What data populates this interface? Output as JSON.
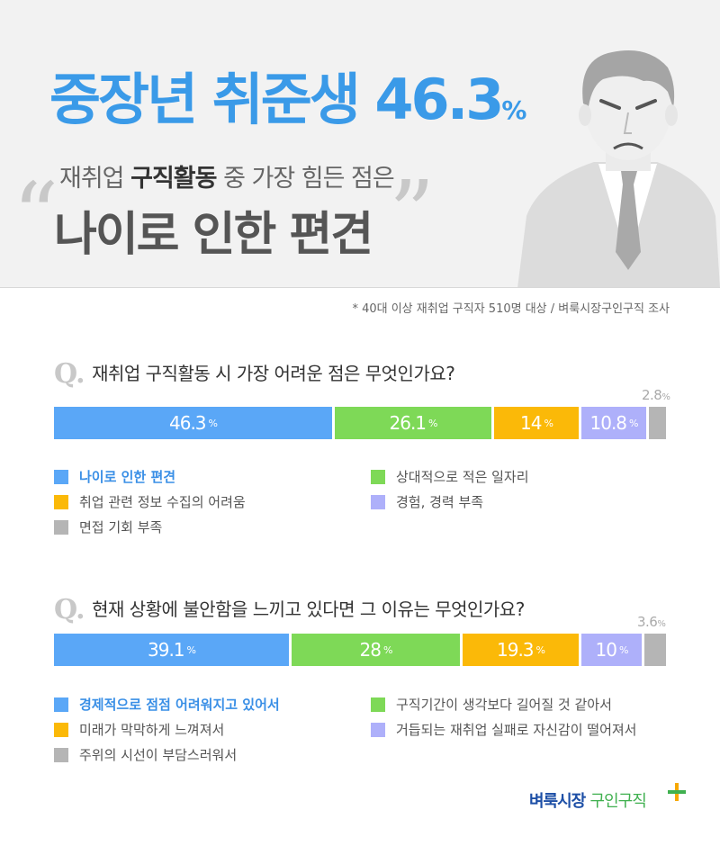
{
  "header": {
    "headline": "중장년 취준생 46.3",
    "headline_unit": "%",
    "subtitle_pre": "재취업 ",
    "subtitle_bold": "구직활동",
    "subtitle_post": " 중 가장 힘든 점은",
    "quote_open": "“",
    "quote_close": "”",
    "main_quote": "나이로 인한 편견"
  },
  "source": "* 40대 이상 재취업 구직자 510명 대상 / 벼룩시장구인구직 조사",
  "q_mark": "Q.",
  "colors": {
    "blue": "#5aa7f7",
    "green": "#7ed957",
    "orange": "#fbb908",
    "purple": "#aeb0fa",
    "gray": "#b5b5b5",
    "title_blue": "#3a9ae8"
  },
  "chart_data": [
    {
      "type": "bar",
      "title": "재취업 구직활동 시 가장 어려운 점은 무엇인가요?",
      "unit": "%",
      "categories": [
        "나이로 인한 편견",
        "상대적으로 적은 일자리",
        "취업 관련 정보 수집의 어려움",
        "경험, 경력 부족",
        "면접 기회 부족"
      ],
      "values": [
        46.3,
        26.1,
        14,
        10.8,
        2.8
      ],
      "labels": [
        "46.3",
        "26.1",
        "14",
        "10.8",
        "2.8"
      ]
    },
    {
      "type": "bar",
      "title": "현재 상황에 불안함을 느끼고 있다면 그 이유는 무엇인가요?",
      "unit": "%",
      "categories": [
        "경제적으로 점점 어려워지고 있어서",
        "구직기간이 생각보다 길어질 것 같아서",
        "미래가 막막하게 느껴져서",
        "거듭되는 재취업 실패로 자신감이 떨어져서",
        "주위의 시선이 부담스러워서"
      ],
      "values": [
        39.1,
        28,
        19.3,
        10,
        3.6
      ],
      "labels": [
        "39.1",
        "28",
        "19.3",
        "10",
        "3.6"
      ]
    }
  ],
  "logo": {
    "part1": "벼룩시장 ",
    "part2": "구인구직"
  }
}
